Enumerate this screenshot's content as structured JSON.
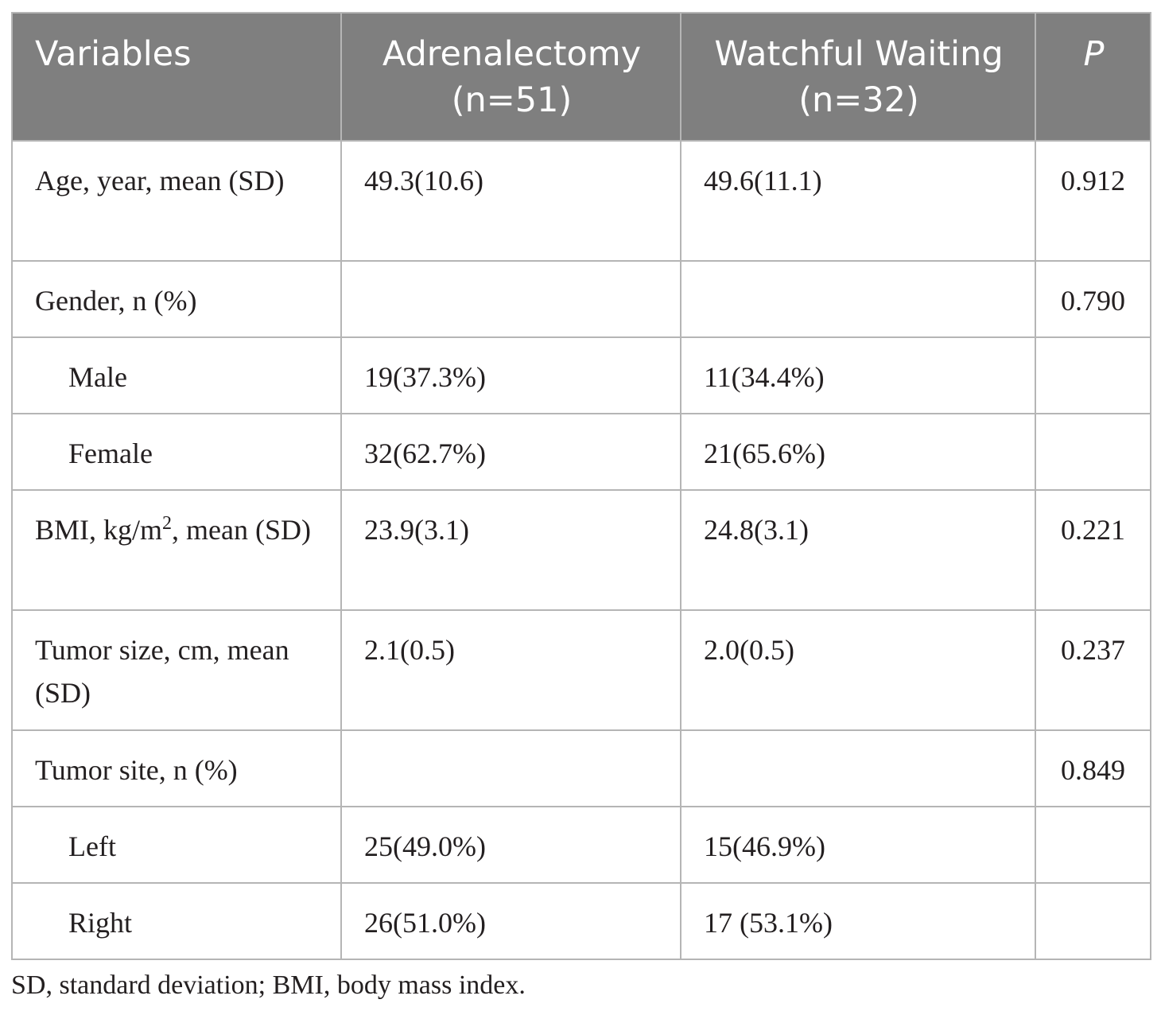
{
  "table": {
    "headers": {
      "variables": "Variables",
      "adrenalectomy_line1": "Adrenalectomy",
      "adrenalectomy_line2": "(n=51)",
      "watchful_line1": "Watchful Waiting",
      "watchful_line2": "(n=32)",
      "p": "P"
    },
    "rows": {
      "age": {
        "label": "Age, year, mean (SD)",
        "adrenalectomy": "49.3(10.6)",
        "watchful": "49.6(11.1)",
        "p": "0.912"
      },
      "gender": {
        "label": "Gender, n (%)",
        "adrenalectomy": "",
        "watchful": "",
        "p": "0.790"
      },
      "male": {
        "label": "Male",
        "adrenalectomy": "19(37.3%)",
        "watchful": "11(34.4%)",
        "p": ""
      },
      "female": {
        "label": "Female",
        "adrenalectomy": "32(62.7%)",
        "watchful": "21(65.6%)",
        "p": ""
      },
      "bmi": {
        "label_prefix": "BMI, kg/m",
        "label_sup": "2",
        "label_suffix": ", mean (SD)",
        "adrenalectomy": "23.9(3.1)",
        "watchful": "24.8(3.1)",
        "p": "0.221"
      },
      "tumor_size": {
        "label": "Tumor size, cm, mean (SD)",
        "adrenalectomy": "2.1(0.5)",
        "watchful": "2.0(0.5)",
        "p": "0.237"
      },
      "tumor_site": {
        "label": "Tumor site, n (%)",
        "adrenalectomy": "",
        "watchful": "",
        "p": "0.849"
      },
      "left": {
        "label": "Left",
        "adrenalectomy": "25(49.0%)",
        "watchful": "15(46.9%)",
        "p": ""
      },
      "right": {
        "label": "Right",
        "adrenalectomy": "26(51.0%)",
        "watchful": "17 (53.1%)",
        "p": ""
      }
    }
  },
  "footnote": "SD, standard deviation; BMI, body mass index."
}
